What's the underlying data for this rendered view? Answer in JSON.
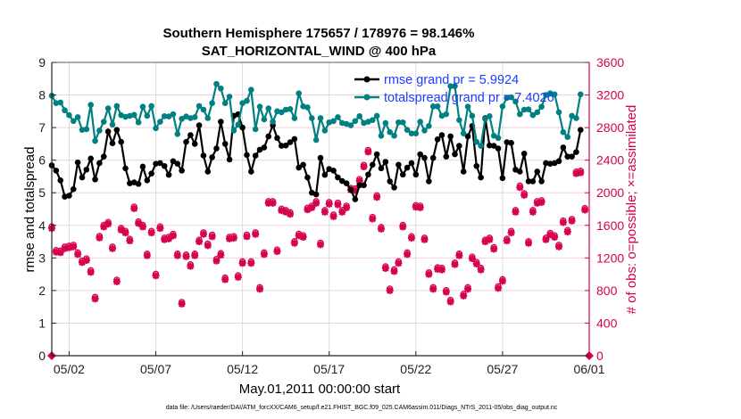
{
  "chart_data": {
    "type": "line",
    "title": [
      "Southern Hemisphere 175657 / 178976 = 98.146%",
      "SAT_HORIZONTAL_WIND @ 400 hPa"
    ],
    "xlabel": "May.01,2011 00:00:00 start",
    "ylabel": "rmse and totalspread",
    "y2label": "# of obs: o=possible; ×=assimilated",
    "footer": "data file: /Users/raeder/DAI/ATM_forcXX/CAM6_setup/f.e21.FHIST_BGC.f09_025.CAM6assim.011/Diags_NTrS_2011-05/obs_diag_output.nc",
    "x_unit": "days since May 1 2011 00:00",
    "x_step_days": 0.25,
    "xlim": [
      0,
      31
    ],
    "ylim": [
      0,
      9
    ],
    "y2lim": [
      0,
      3600
    ],
    "x_ticks": [
      {
        "v": 1,
        "label": "05/02"
      },
      {
        "v": 6,
        "label": "05/07"
      },
      {
        "v": 11,
        "label": "05/12"
      },
      {
        "v": 16,
        "label": "05/17"
      },
      {
        "v": 21,
        "label": "05/22"
      },
      {
        "v": 26,
        "label": "05/27"
      },
      {
        "v": 31,
        "label": "06/01"
      }
    ],
    "y_ticks": [
      "0",
      "1",
      "2",
      "3",
      "4",
      "5",
      "6",
      "7",
      "8",
      "9"
    ],
    "y2_ticks": [
      "0",
      "400",
      "800",
      "1200",
      "1600",
      "2000",
      "2400",
      "2800",
      "3200",
      "3600"
    ],
    "grid": true,
    "legend_placement": "top-right",
    "series": [
      {
        "name": "rmse grand pr = 5.9924",
        "color": "#000000",
        "axis": "left",
        "values": [
          5.84,
          5.68,
          5.38,
          4.88,
          4.91,
          5.11,
          5.93,
          5.47,
          5.71,
          6.05,
          5.41,
          5.91,
          6.11,
          6.88,
          6.52,
          6.93,
          6.56,
          5.75,
          5.29,
          5.32,
          5.27,
          5.8,
          5.38,
          5.59,
          5.89,
          5.91,
          5.82,
          5.55,
          5.97,
          5.89,
          5.68,
          6.56,
          6.77,
          6.5,
          7.07,
          6.14,
          5.65,
          6.09,
          6.36,
          7.18,
          6.5,
          6.02,
          7.36,
          7.41,
          7.0,
          6.16,
          5.65,
          6.14,
          6.32,
          6.39,
          6.73,
          7.07,
          6.68,
          6.44,
          6.45,
          6.55,
          6.65,
          5.77,
          5.86,
          5.47,
          5.0,
          4.95,
          6.07,
          5.55,
          5.73,
          5.68,
          5.47,
          5.36,
          5.29,
          5.09,
          4.8,
          5.23,
          5.23,
          5.56,
          5.86,
          6.18,
          5.75,
          5.95,
          5.35,
          5.16,
          5.86,
          5.56,
          5.77,
          5.91,
          5.56,
          6.18,
          6.07,
          5.35,
          6.07,
          6.64,
          6.77,
          6.11,
          6.73,
          6.18,
          6.44,
          5.65,
          6.73,
          7.05,
          5.82,
          5.47,
          7.29,
          6.45,
          6.44,
          6.36,
          5.45,
          6.55,
          6.53,
          5.71,
          5.65,
          6.2,
          5.35,
          5.35,
          5.65,
          5.35,
          5.91,
          5.89,
          5.91,
          5.97,
          6.39,
          6.11,
          6.11,
          6.25,
          6.93
        ]
      },
      {
        "name": "totalspread grand pr = 7.4026",
        "color": "#008080",
        "axis": "left",
        "values": [
          7.98,
          7.75,
          7.77,
          7.53,
          7.38,
          7.2,
          7.32,
          6.93,
          6.95,
          7.7,
          6.59,
          6.91,
          7.18,
          7.59,
          7.09,
          7.66,
          7.38,
          7.33,
          7.36,
          7.39,
          7.16,
          7.64,
          7.36,
          7.66,
          6.98,
          7.18,
          7.35,
          7.34,
          7.41,
          6.8,
          7.27,
          7.34,
          7.29,
          7.32,
          7.66,
          7.55,
          7.29,
          7.75,
          8.34,
          8.2,
          7.75,
          7.95,
          6.91,
          7.09,
          7.75,
          7.82,
          8.16,
          6.95,
          7.64,
          7.25,
          7.59,
          7.18,
          7.5,
          7.47,
          7.55,
          7.57,
          7.29,
          8.05,
          7.65,
          7.62,
          7.29,
          6.62,
          7.29,
          6.91,
          7.16,
          7.2,
          7.32,
          7.14,
          7.11,
          7.07,
          7.2,
          7.35,
          7.14,
          7.18,
          7.23,
          7.36,
          6.75,
          7.14,
          6.86,
          6.75,
          7.16,
          7.16,
          6.93,
          6.82,
          6.82,
          7.18,
          6.91,
          7.05,
          7.65,
          7.65,
          7.36,
          7.41,
          8.27,
          8.27,
          7.23,
          6.82,
          7.64,
          7.36,
          6.56,
          6.44,
          7.27,
          7.35,
          6.75,
          6.68,
          7.65,
          7.91,
          7.93,
          7.8,
          7.41,
          7.55,
          7.56,
          7.38,
          7.47,
          7.64,
          8.0,
          8.05,
          8.02,
          7.47,
          6.86,
          6.71,
          7.36,
          7.29,
          8.02
        ]
      },
      {
        "name": "# of obs (possible o / assimilated ×)",
        "color": "#d6004f",
        "axis": "right",
        "values": [
          1564,
          1273,
          1266,
          1316,
          1327,
          1338,
          1244,
          1145,
          1171,
          1025,
          698,
          1447,
          1582,
          1618,
          1316,
          909,
          1545,
          1509,
          1411,
          1807,
          1625,
          1582,
          1229,
          1509,
          982,
          1564,
          1425,
          1436,
          1473,
          1229,
          636,
          1218,
          1098,
          1229,
          1400,
          1491,
          1353,
          1462,
          1164,
          1236,
          935,
          1436,
          1444,
          964,
          1135,
          1462,
          1135,
          1491,
          818,
          1244,
          1873,
          1873,
          1280,
          1782,
          1764,
          1738,
          1382,
          1473,
          1455,
          1793,
          1818,
          1873,
          1364,
          1764,
          1862,
          1709,
          1855,
          1764,
          1818,
          2036,
          2029,
          2145,
          2320,
          2502,
          1680,
          1945,
          1556,
          1073,
          800,
          1036,
          1135,
          1582,
          1244,
          1444,
          1825,
          1818,
          1425,
          1000,
          818,
          1062,
          1055,
          782,
          662,
          1120,
          1229,
          735,
          818,
          1193,
          1127,
          1055,
          1400,
          1425,
          1309,
          829,
          916,
          1411,
          1509,
          1764,
          2065,
          1971,
          1382,
          1764,
          1873,
          1884,
          1425,
          1484,
          1455,
          1338,
          1636,
          1520,
          1655,
          2236,
          2247,
          1789
        ]
      }
    ],
    "endpoint_markers": [
      {
        "x": 0,
        "y2": 0
      },
      {
        "x": 31,
        "y2": 0
      }
    ]
  }
}
